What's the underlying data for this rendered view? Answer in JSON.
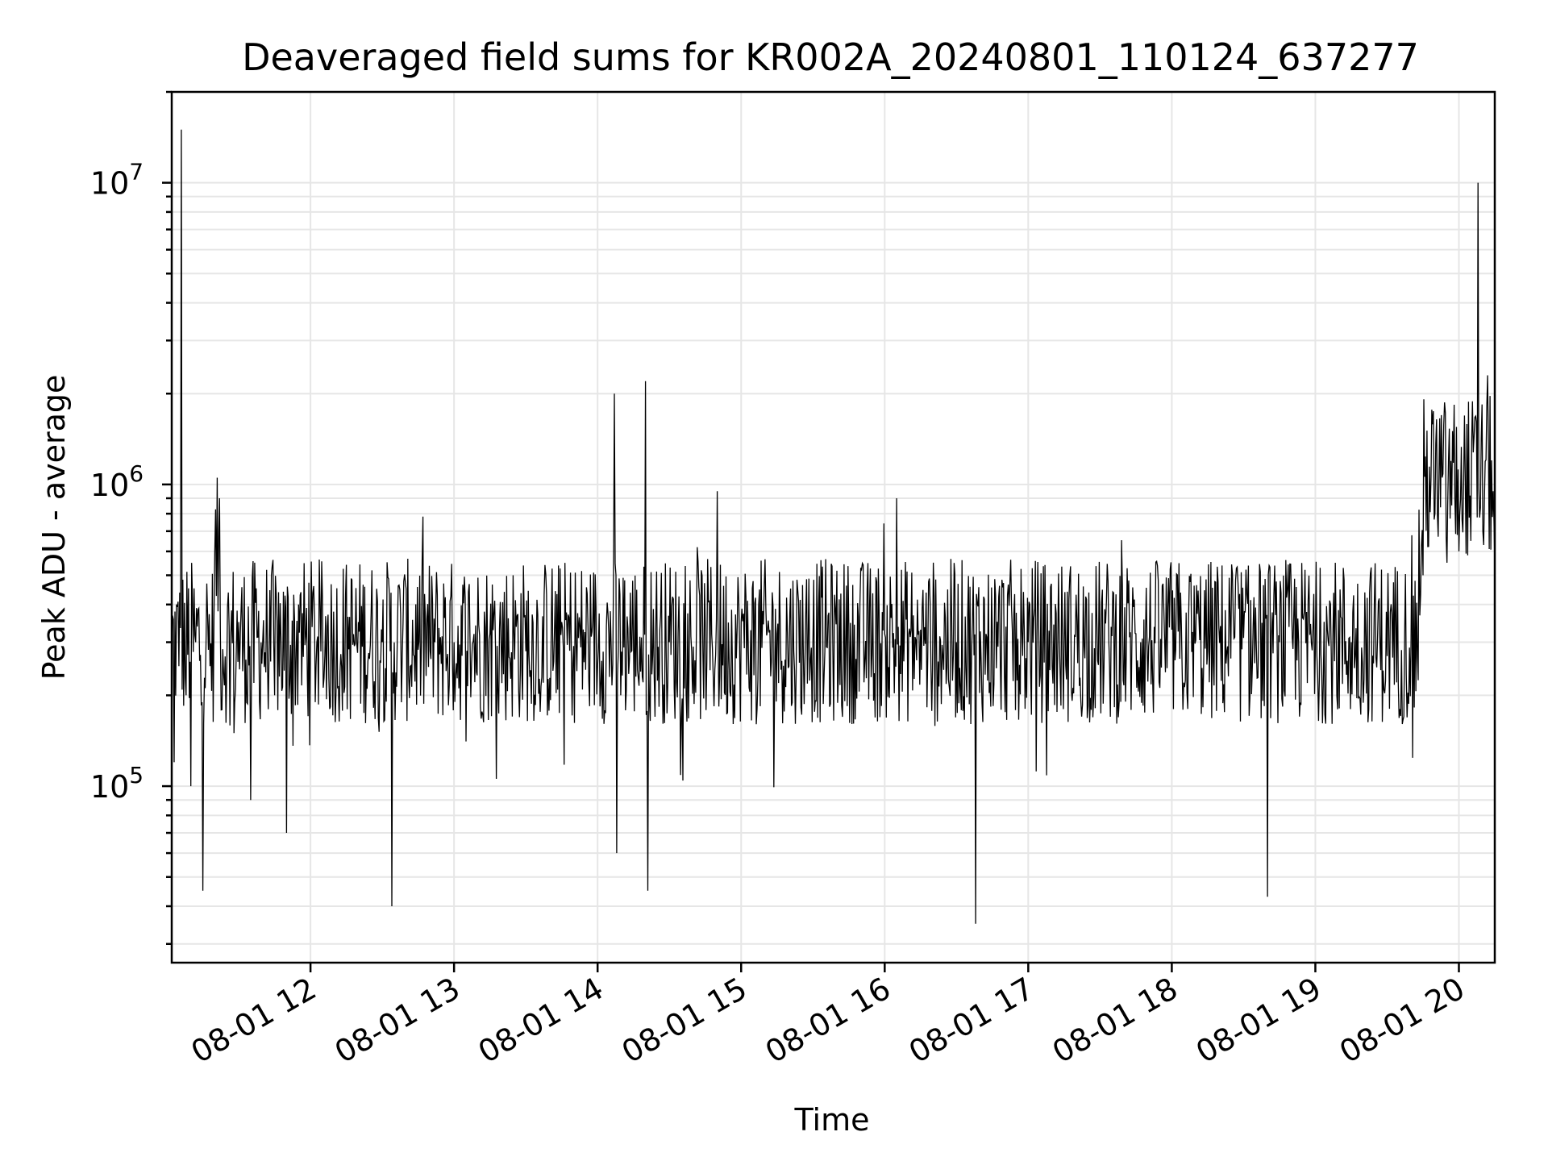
{
  "chart_data": {
    "type": "line",
    "title": "Deaveraged field sums for KR002A_20240801_110124_637277",
    "xlabel": "Time",
    "ylabel": "Peak ADU - average",
    "yscale": "log",
    "ylim": [
      26000,
      20000000
    ],
    "xlim": [
      "2024-08-01 11:02",
      "2024-08-01 20:15"
    ],
    "x_ticks": [
      "08-01 12",
      "08-01 13",
      "08-01 14",
      "08-01 15",
      "08-01 16",
      "08-01 17",
      "08-01 18",
      "08-01 19",
      "08-01 20"
    ],
    "y_ticks": [
      {
        "base": "10",
        "exp": "5",
        "value": 100000
      },
      {
        "base": "10",
        "exp": "6",
        "value": 1000000
      },
      {
        "base": "10",
        "exp": "7",
        "value": 10000000
      }
    ],
    "grid": true,
    "line_color": "#000000",
    "series": [
      {
        "x": [
          "2024-08-01 11:02",
          "2024-08-01 11:03",
          "2024-08-01 11:04",
          "2024-08-01 11:05",
          "2024-08-01 11:06",
          "2024-08-01 11:08",
          "2024-08-01 11:10",
          "2024-08-01 11:12",
          "2024-08-01 11:15",
          "2024-08-01 11:18",
          "2024-08-01 11:20",
          "2024-08-01 11:22",
          "2024-08-01 11:25",
          "2024-08-01 11:28",
          "2024-08-01 11:30",
          "2024-08-01 11:35",
          "2024-08-01 11:40",
          "2024-08-01 11:45",
          "2024-08-01 11:50",
          "2024-08-01 11:55",
          "2024-08-01 12:00",
          "2024-08-01 12:10",
          "2024-08-01 12:20",
          "2024-08-01 12:30",
          "2024-08-01 12:34",
          "2024-08-01 12:40",
          "2024-08-01 12:50",
          "2024-08-01 13:00",
          "2024-08-01 13:15",
          "2024-08-01 13:30",
          "2024-08-01 13:45",
          "2024-08-01 14:00",
          "2024-08-01 14:07",
          "2024-08-01 14:08",
          "2024-08-01 14:15",
          "2024-08-01 14:20",
          "2024-08-01 14:21",
          "2024-08-01 14:30",
          "2024-08-01 14:45",
          "2024-08-01 14:50",
          "2024-08-01 15:00",
          "2024-08-01 15:15",
          "2024-08-01 15:30",
          "2024-08-01 15:45",
          "2024-08-01 16:00",
          "2024-08-01 16:05",
          "2024-08-01 16:15",
          "2024-08-01 16:30",
          "2024-08-01 16:38",
          "2024-08-01 16:45",
          "2024-08-01 17:00",
          "2024-08-01 17:15",
          "2024-08-01 17:30",
          "2024-08-01 17:45",
          "2024-08-01 18:00",
          "2024-08-01 18:15",
          "2024-08-01 18:30",
          "2024-08-01 18:40",
          "2024-08-01 18:45",
          "2024-08-01 19:00",
          "2024-08-01 19:15",
          "2024-08-01 19:30",
          "2024-08-01 19:40",
          "2024-08-01 19:45",
          "2024-08-01 19:50",
          "2024-08-01 19:55",
          "2024-08-01 20:00",
          "2024-08-01 20:05",
          "2024-08-01 20:08",
          "2024-08-01 20:10",
          "2024-08-01 20:12",
          "2024-08-01 20:15"
        ],
        "y": [
          300000,
          120000,
          400000,
          250000,
          15000000,
          200000,
          100000,
          300000,
          45000,
          250000,
          600000,
          900000,
          250000,
          150000,
          350000,
          90000,
          300000,
          200000,
          70000,
          400000,
          300000,
          250000,
          350000,
          300000,
          40000,
          450000,
          280000,
          300000,
          320000,
          280000,
          350000,
          250000,
          2000000,
          60000,
          300000,
          2200000,
          45000,
          300000,
          350000,
          950000,
          350000,
          320000,
          300000,
          340000,
          320000,
          900000,
          330000,
          300000,
          35000,
          320000,
          300000,
          300000,
          280000,
          320000,
          330000,
          280000,
          310000,
          43000,
          300000,
          280000,
          300000,
          270000,
          300000,
          500000,
          800000,
          550000,
          600000,
          650000,
          10000000,
          700000,
          2300000,
          550000
        ]
      }
    ]
  }
}
